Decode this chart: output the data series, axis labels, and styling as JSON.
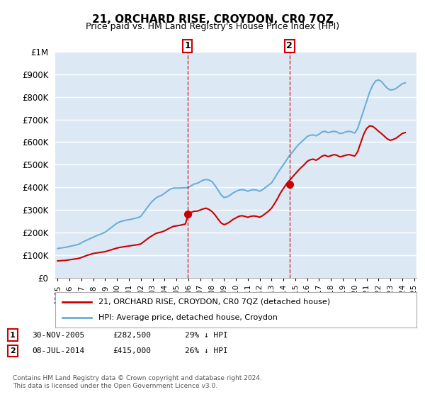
{
  "title": "21, ORCHARD RISE, CROYDON, CR0 7QZ",
  "subtitle": "Price paid vs. HM Land Registry's House Price Index (HPI)",
  "xlabel": "",
  "ylabel": "",
  "ylim": [
    0,
    1000000
  ],
  "yticks": [
    0,
    100000,
    200000,
    300000,
    400000,
    500000,
    600000,
    700000,
    800000,
    900000,
    1000000
  ],
  "ytick_labels": [
    "£0",
    "£100K",
    "£200K",
    "£300K",
    "£400K",
    "£500K",
    "£600K",
    "£700K",
    "£800K",
    "£900K",
    "£1M"
  ],
  "background_color": "#ffffff",
  "plot_bg_color": "#dce9f5",
  "grid_color": "#ffffff",
  "hpi_color": "#6baed6",
  "price_color": "#cc0000",
  "transaction1_date": "2005-11-30",
  "transaction1_price": 282500,
  "transaction1_label": "1",
  "transaction1_x": 2005.92,
  "transaction2_date": "2014-07-08",
  "transaction2_price": 415000,
  "transaction2_label": "2",
  "transaction2_x": 2014.52,
  "legend_line1": "21, ORCHARD RISE, CROYDON, CR0 7QZ (detached house)",
  "legend_line2": "HPI: Average price, detached house, Croydon",
  "footnote1": "1    30-NOV-2005          £282,500          29% ↓ HPI",
  "footnote2": "2    08-JUL-2014            £415,000          26% ↓ HPI",
  "copyright": "Contains HM Land Registry data © Crown copyright and database right 2024.\nThis data is licensed under the Open Government Licence v3.0.",
  "hpi_years": [
    1995.0,
    1995.25,
    1995.5,
    1995.75,
    1996.0,
    1996.25,
    1996.5,
    1996.75,
    1997.0,
    1997.25,
    1997.5,
    1997.75,
    1998.0,
    1998.25,
    1998.5,
    1998.75,
    1999.0,
    1999.25,
    1999.5,
    1999.75,
    2000.0,
    2000.25,
    2000.5,
    2000.75,
    2001.0,
    2001.25,
    2001.5,
    2001.75,
    2002.0,
    2002.25,
    2002.5,
    2002.75,
    2003.0,
    2003.25,
    2003.5,
    2003.75,
    2004.0,
    2004.25,
    2004.5,
    2004.75,
    2005.0,
    2005.25,
    2005.5,
    2005.75,
    2006.0,
    2006.25,
    2006.5,
    2006.75,
    2007.0,
    2007.25,
    2007.5,
    2007.75,
    2008.0,
    2008.25,
    2008.5,
    2008.75,
    2009.0,
    2009.25,
    2009.5,
    2009.75,
    2010.0,
    2010.25,
    2010.5,
    2010.75,
    2011.0,
    2011.25,
    2011.5,
    2011.75,
    2012.0,
    2012.25,
    2012.5,
    2012.75,
    2013.0,
    2013.25,
    2013.5,
    2013.75,
    2014.0,
    2014.25,
    2014.5,
    2014.75,
    2015.0,
    2015.25,
    2015.5,
    2015.75,
    2016.0,
    2016.25,
    2016.5,
    2016.75,
    2017.0,
    2017.25,
    2017.5,
    2017.75,
    2018.0,
    2018.25,
    2018.5,
    2018.75,
    2019.0,
    2019.25,
    2019.5,
    2019.75,
    2020.0,
    2020.25,
    2020.5,
    2020.75,
    2021.0,
    2021.25,
    2021.5,
    2021.75,
    2022.0,
    2022.25,
    2022.5,
    2022.75,
    2023.0,
    2023.25,
    2023.5,
    2023.75,
    2024.0,
    2024.25
  ],
  "hpi_values": [
    130000,
    132000,
    134000,
    136000,
    139000,
    142000,
    145000,
    148000,
    155000,
    162000,
    168000,
    174000,
    180000,
    186000,
    191000,
    196000,
    202000,
    212000,
    222000,
    232000,
    242000,
    248000,
    252000,
    255000,
    257000,
    260000,
    263000,
    266000,
    272000,
    290000,
    308000,
    326000,
    340000,
    352000,
    360000,
    365000,
    374000,
    384000,
    393000,
    397000,
    397000,
    397000,
    398000,
    398000,
    400000,
    408000,
    415000,
    418000,
    425000,
    432000,
    435000,
    432000,
    425000,
    408000,
    388000,
    368000,
    355000,
    358000,
    365000,
    375000,
    382000,
    388000,
    390000,
    388000,
    383000,
    388000,
    390000,
    388000,
    383000,
    390000,
    400000,
    410000,
    420000,
    440000,
    462000,
    482000,
    500000,
    520000,
    540000,
    555000,
    572000,
    588000,
    600000,
    612000,
    625000,
    630000,
    632000,
    628000,
    635000,
    645000,
    648000,
    642000,
    645000,
    648000,
    645000,
    638000,
    640000,
    645000,
    648000,
    645000,
    640000,
    660000,
    700000,
    740000,
    780000,
    820000,
    850000,
    870000,
    875000,
    868000,
    852000,
    838000,
    830000,
    832000,
    838000,
    848000,
    858000,
    862000
  ],
  "price_years": [
    1995.0,
    1995.25,
    1995.5,
    1995.75,
    1996.0,
    1996.25,
    1996.5,
    1996.75,
    1997.0,
    1997.25,
    1997.5,
    1997.75,
    1998.0,
    1998.25,
    1998.5,
    1998.75,
    1999.0,
    1999.25,
    1999.5,
    1999.75,
    2000.0,
    2000.25,
    2000.5,
    2000.75,
    2001.0,
    2001.25,
    2001.5,
    2001.75,
    2002.0,
    2002.25,
    2002.5,
    2002.75,
    2003.0,
    2003.25,
    2003.5,
    2003.75,
    2004.0,
    2004.25,
    2004.5,
    2004.75,
    2005.0,
    2005.25,
    2005.5,
    2005.75,
    2006.0,
    2006.25,
    2006.5,
    2006.75,
    2007.0,
    2007.25,
    2007.5,
    2007.75,
    2008.0,
    2008.25,
    2008.5,
    2008.75,
    2009.0,
    2009.25,
    2009.5,
    2009.75,
    2010.0,
    2010.25,
    2010.5,
    2010.75,
    2011.0,
    2011.25,
    2011.5,
    2011.75,
    2012.0,
    2012.25,
    2012.5,
    2012.75,
    2013.0,
    2013.25,
    2013.5,
    2013.75,
    2014.0,
    2014.25,
    2014.5,
    2014.75,
    2015.0,
    2015.25,
    2015.5,
    2015.75,
    2016.0,
    2016.25,
    2016.5,
    2016.75,
    2017.0,
    2017.25,
    2017.5,
    2017.75,
    2018.0,
    2018.25,
    2018.5,
    2018.75,
    2019.0,
    2019.25,
    2019.5,
    2019.75,
    2020.0,
    2020.25,
    2020.5,
    2020.75,
    2021.0,
    2021.25,
    2021.5,
    2021.75,
    2022.0,
    2022.25,
    2022.5,
    2022.75,
    2023.0,
    2023.25,
    2023.5,
    2023.75,
    2024.0,
    2024.25
  ],
  "price_values": [
    75000,
    76000,
    77000,
    78000,
    80000,
    82000,
    84000,
    86000,
    90000,
    95000,
    100000,
    104000,
    108000,
    110000,
    112000,
    114000,
    116000,
    120000,
    124000,
    128000,
    132000,
    135000,
    137000,
    139000,
    141000,
    143000,
    145000,
    147000,
    150000,
    160000,
    170000,
    180000,
    188000,
    196000,
    200000,
    203000,
    208000,
    215000,
    222000,
    228000,
    230000,
    232000,
    235000,
    238000,
    282500,
    290000,
    295000,
    295000,
    300000,
    305000,
    308000,
    302000,
    293000,
    278000,
    260000,
    243000,
    235000,
    240000,
    248000,
    258000,
    265000,
    272000,
    275000,
    272000,
    268000,
    272000,
    274000,
    272000,
    268000,
    275000,
    285000,
    295000,
    308000,
    328000,
    350000,
    375000,
    395000,
    415000,
    430000,
    445000,
    460000,
    475000,
    488000,
    500000,
    515000,
    522000,
    525000,
    520000,
    528000,
    538000,
    542000,
    536000,
    540000,
    545000,
    542000,
    535000,
    538000,
    542000,
    545000,
    542000,
    538000,
    558000,
    596000,
    634000,
    660000,
    672000,
    670000,
    660000,
    648000,
    638000,
    626000,
    614000,
    608000,
    612000,
    618000,
    628000,
    638000,
    642000
  ],
  "xtick_years": [
    1995,
    1996,
    1997,
    1998,
    1999,
    2000,
    2001,
    2002,
    2003,
    2004,
    2005,
    2006,
    2007,
    2008,
    2009,
    2010,
    2011,
    2012,
    2013,
    2014,
    2015,
    2016,
    2017,
    2018,
    2019,
    2020,
    2021,
    2022,
    2023,
    2024,
    2025
  ]
}
